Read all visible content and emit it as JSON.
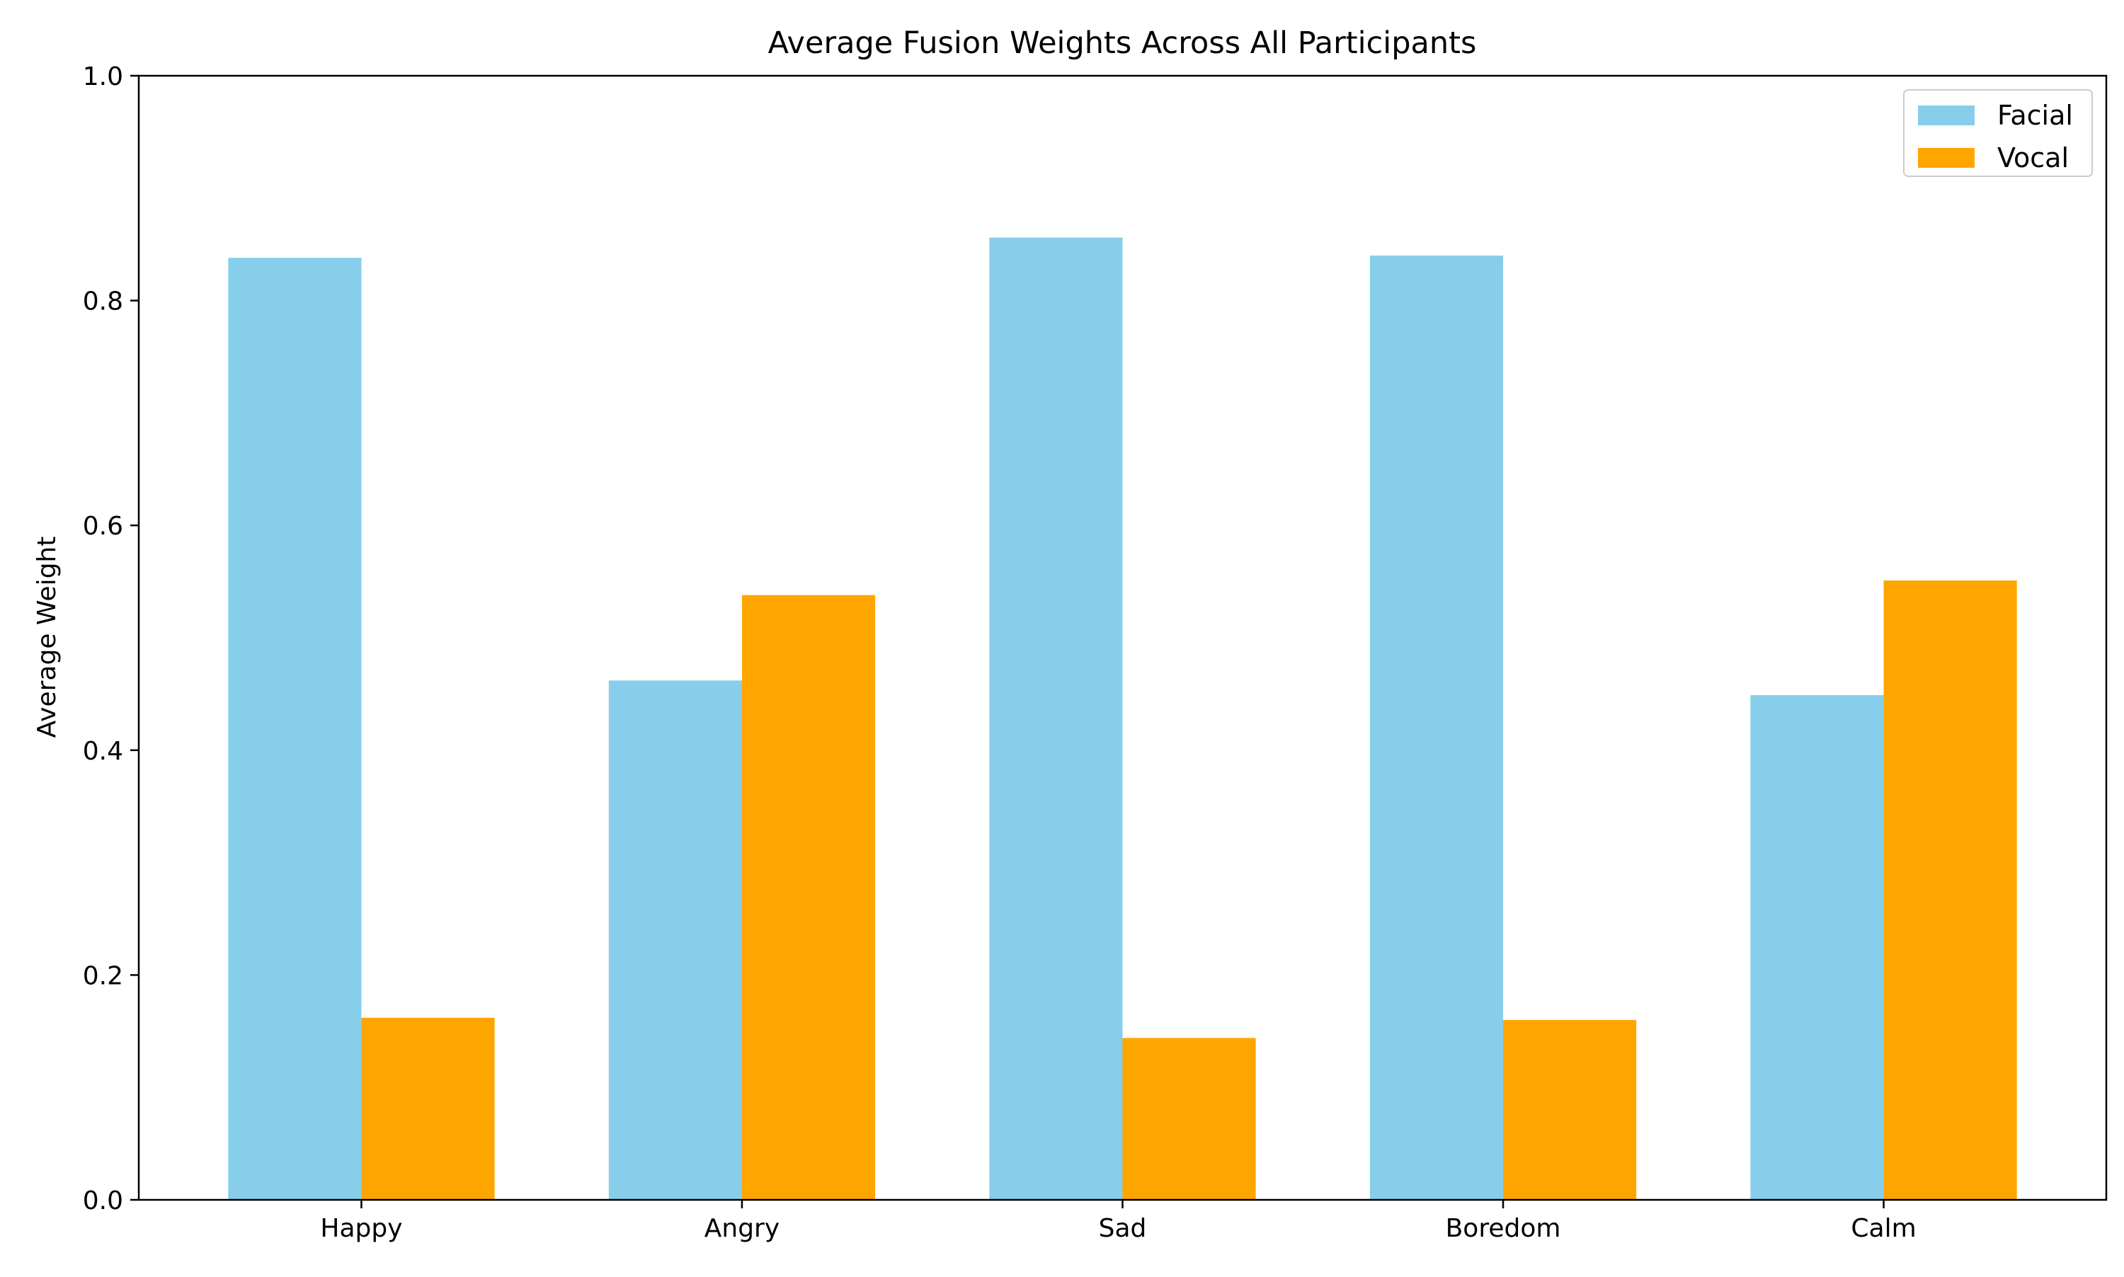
{
  "chart_data": {
    "type": "bar",
    "title": "Average Fusion Weights Across All Participants",
    "xlabel": "",
    "ylabel": "Average Weight",
    "categories": [
      "Happy",
      "Angry",
      "Sad",
      "Boredom",
      "Calm"
    ],
    "series": [
      {
        "name": "Facial",
        "color": "#87ceeb",
        "values": [
          0.838,
          0.462,
          0.856,
          0.84,
          0.449
        ]
      },
      {
        "name": "Vocal",
        "color": "#ffa500",
        "values": [
          0.162,
          0.538,
          0.144,
          0.16,
          0.551
        ]
      }
    ],
    "ylim": [
      0,
      1.0
    ],
    "yticks": [
      "0.0",
      "0.2",
      "0.4",
      "0.6",
      "0.8",
      "1.0"
    ],
    "grid": false,
    "legend_position": "top-right"
  }
}
